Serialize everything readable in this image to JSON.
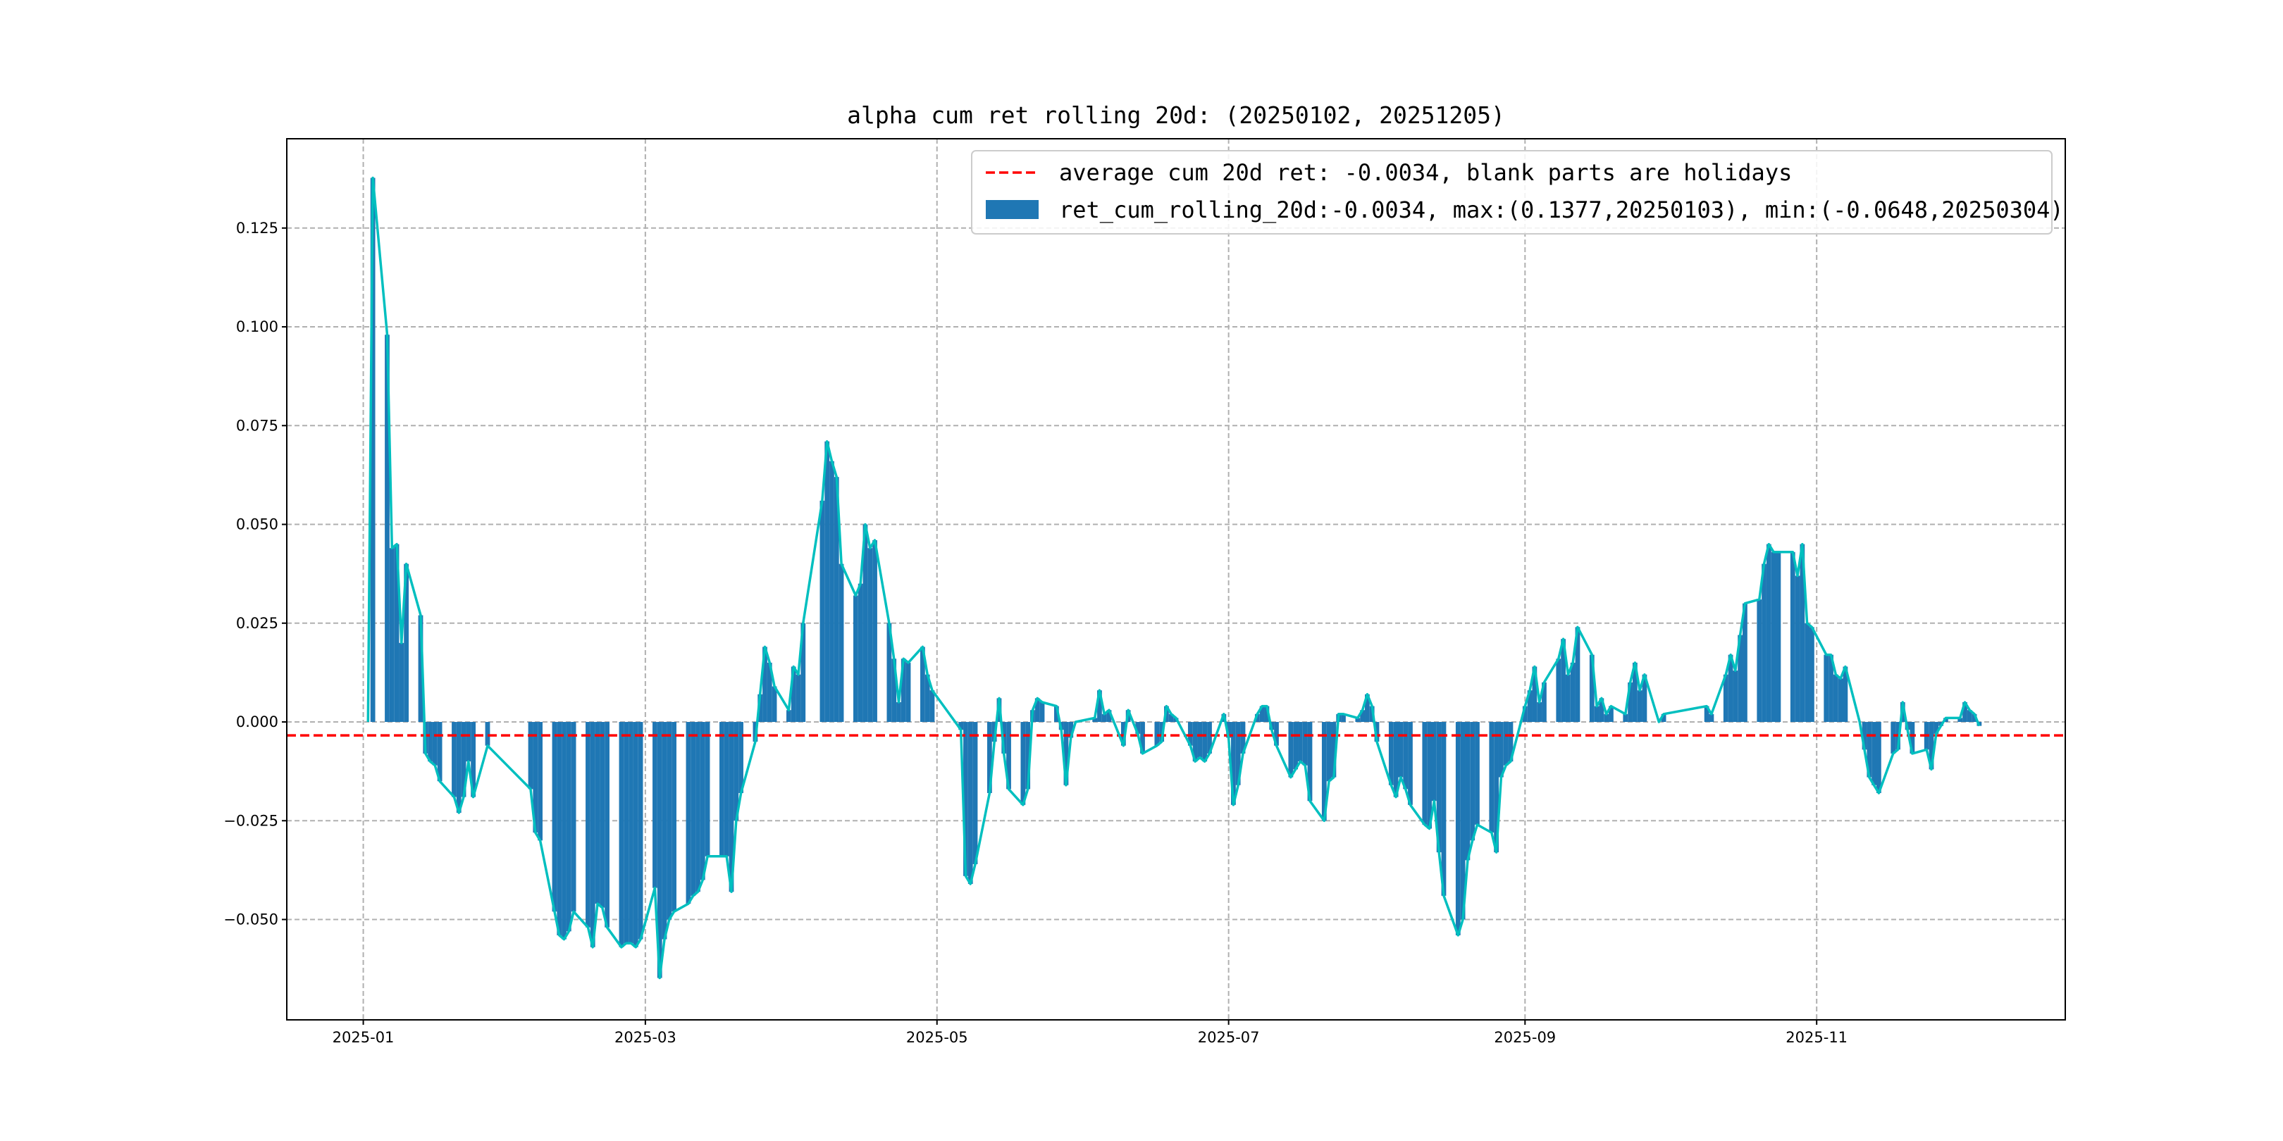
{
  "chart_data": {
    "type": "bar",
    "title": "alpha cum ret rolling 20d: (20250102, 20251205)",
    "xlabel": "",
    "ylabel": "",
    "ylim": [
      -0.0754,
      0.1476
    ],
    "xlim": [
      "2024-12-16",
      "2025-12-23"
    ],
    "grid": true,
    "legend_position": "top-right",
    "yticks": [
      -0.05,
      -0.025,
      0.0,
      0.025,
      0.05,
      0.075,
      0.1,
      0.125
    ],
    "ytick_labels": [
      "−0.050",
      "−0.025",
      "0.000",
      "0.025",
      "0.050",
      "0.075",
      "0.100",
      "0.125"
    ],
    "xticks": [
      "2025-01-01",
      "2025-03-01",
      "2025-05-01",
      "2025-07-01",
      "2025-09-01",
      "2025-11-01"
    ],
    "xtick_labels": [
      "2025-01",
      "2025-03",
      "2025-05",
      "2025-07",
      "2025-09",
      "2025-11"
    ],
    "average": -0.0034,
    "legend": [
      {
        "name": "average cum 20d ret: -0.0034, blank parts are holidays",
        "style": "dashed-line",
        "color": "#ff0000"
      },
      {
        "name": "ret_cum_rolling_20d:-0.0034, max:(0.1377,20250103), min:(-0.0648,20250304)",
        "style": "bar",
        "color": "#1f77b4"
      }
    ],
    "line_color": "#00bfbf",
    "bar_color": "#1f77b4",
    "holidays": [
      "2025-01-01",
      "2025-01-28",
      "2025-01-29",
      "2025-01-30",
      "2025-01-31",
      "2025-02-03",
      "2025-02-04",
      "2025-04-04",
      "2025-05-01",
      "2025-05-02",
      "2025-05-05",
      "2025-06-02",
      "2025-10-01",
      "2025-10-02",
      "2025-10-03",
      "2025-10-06",
      "2025-10-07",
      "2025-10-08"
    ],
    "start_date": "2025-01-02",
    "end_date": "2025-12-05",
    "series": [
      {
        "name": "ret_cum_rolling_20d",
        "values_by_month": {
          "2025-01": [
            0.0,
            0.1377,
            0.098,
            0.044,
            0.045,
            0.02,
            0.04,
            0.027,
            -0.008,
            -0.01,
            -0.011,
            -0.015,
            -0.019,
            -0.023,
            -0.019,
            -0.01,
            -0.019,
            -0.006
          ],
          "2025-02": [
            -0.017,
            -0.028,
            -0.03,
            -0.048,
            -0.054,
            -0.055,
            -0.053,
            -0.048,
            -0.052,
            -0.057,
            -0.046,
            -0.047,
            -0.052,
            -0.057,
            -0.056,
            -0.056,
            -0.057,
            -0.055
          ],
          "2025-03": [
            -0.042,
            -0.0648,
            -0.055,
            -0.05,
            -0.048,
            -0.046,
            -0.044,
            -0.043,
            -0.04,
            -0.034,
            -0.034,
            -0.034,
            -0.043,
            -0.025,
            -0.018,
            -0.005,
            0.007,
            0.019,
            0.015,
            0.009,
            0.003
          ],
          "2025-04": [
            0.014,
            0.012,
            0.025,
            0.056,
            0.071,
            0.066,
            0.062,
            0.04,
            0.032,
            0.035,
            0.05,
            0.044,
            0.046,
            0.025,
            0.016,
            0.005,
            0.016,
            0.015,
            0.019,
            0.012,
            0.008
          ],
          "2025-05": [
            -0.002,
            -0.039,
            -0.041,
            -0.036,
            -0.018,
            -0.005,
            0.006,
            -0.008,
            -0.017,
            -0.021,
            -0.017,
            0.003,
            0.006,
            0.005,
            0.004,
            -0.002,
            -0.016,
            -0.004,
            0.0
          ],
          "2025-06": [
            0.001,
            0.008,
            0.002,
            0.003,
            -0.006,
            0.003,
            0.0,
            -0.003,
            -0.008,
            -0.006,
            -0.005,
            0.004,
            0.002,
            0.001,
            -0.006,
            -0.01,
            -0.009,
            -0.01,
            -0.008,
            0.002
          ],
          "2025-07": [
            -0.004,
            -0.021,
            -0.016,
            -0.008,
            0.002,
            0.004,
            0.004,
            -0.002,
            -0.006,
            -0.014,
            -0.012,
            -0.01,
            -0.011,
            -0.02,
            -0.025,
            -0.015,
            -0.014,
            0.002,
            0.002,
            0.001,
            0.003,
            0.007,
            0.004
          ],
          "2025-08": [
            -0.005,
            -0.016,
            -0.019,
            -0.014,
            -0.017,
            -0.021,
            -0.026,
            -0.027,
            -0.02,
            -0.033,
            -0.044,
            -0.054,
            -0.05,
            -0.035,
            -0.03,
            -0.026,
            -0.028,
            -0.033,
            -0.014,
            -0.011,
            -0.01
          ],
          "2025-09": [
            0.004,
            0.008,
            0.014,
            0.005,
            0.01,
            0.016,
            0.021,
            0.012,
            0.015,
            0.024,
            0.017,
            0.004,
            0.006,
            0.002,
            0.004,
            0.002,
            0.01,
            0.015,
            0.008,
            0.012,
            0.0,
            0.002
          ],
          "2025-10": [
            0.004,
            0.002,
            0.012,
            0.017,
            0.013,
            0.022,
            0.03,
            0.031,
            0.04,
            0.045,
            0.043,
            0.043,
            0.043,
            0.037,
            0.045,
            0.025,
            0.024
          ],
          "2025-11": [
            0.017,
            0.017,
            0.012,
            0.011,
            0.014,
            0.0,
            -0.007,
            -0.014,
            -0.016,
            -0.018,
            -0.008,
            -0.007,
            0.005,
            -0.002,
            -0.008,
            -0.007,
            -0.012,
            -0.003,
            -0.001,
            0.001
          ],
          "2025-12": [
            0.001,
            0.005,
            0.003,
            0.002,
            -0.001
          ]
        }
      }
    ]
  }
}
